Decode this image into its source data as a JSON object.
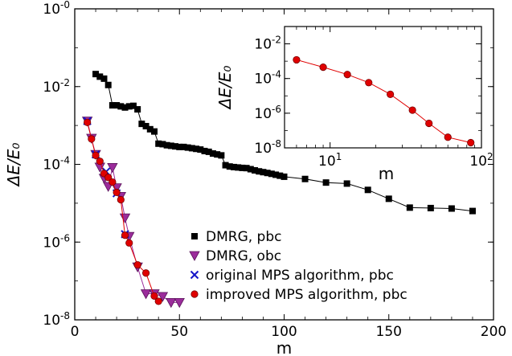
{
  "chart_data": [
    {
      "type": "scatter",
      "xlabel": "m",
      "ylabel": "ΔE/E₀",
      "xscale": "linear",
      "yscale": "log",
      "xlim": [
        0,
        200
      ],
      "ylim": [
        1e-08,
        1
      ],
      "xticks": [
        {
          "value": 0,
          "label": "0"
        },
        {
          "value": 50,
          "label": "50"
        },
        {
          "value": 100,
          "label": "100"
        },
        {
          "value": 150,
          "label": "150"
        },
        {
          "value": 200,
          "label": "200"
        }
      ],
      "yticks": [
        {
          "value": 1e-08,
          "base": "10",
          "exp": "-8"
        },
        {
          "value": 1e-06,
          "base": "10",
          "exp": "-6"
        },
        {
          "value": 0.0001,
          "base": "10",
          "exp": "-4"
        },
        {
          "value": 0.01,
          "base": "10",
          "exp": "-2"
        },
        {
          "value": 1,
          "base": "10",
          "exp": "-0"
        }
      ],
      "legend_position": "bottom-right",
      "series": [
        {
          "name": "DMRG, pbc",
          "marker": "square",
          "color": "#000000",
          "x": [
            10,
            12,
            14,
            16,
            18,
            20,
            22,
            24,
            26,
            28,
            30,
            32,
            34,
            36,
            38,
            40,
            42,
            44,
            46,
            48,
            50,
            52,
            54,
            56,
            58,
            60,
            62,
            64,
            66,
            68,
            70,
            72,
            74,
            76,
            78,
            80,
            82,
            84,
            86,
            88,
            90,
            92,
            94,
            96,
            98,
            100,
            110,
            120,
            130,
            140,
            150,
            160,
            170,
            180,
            190
          ],
          "y": [
            0.021,
            0.018,
            0.016,
            0.011,
            0.0033,
            0.0033,
            0.0031,
            0.0029,
            0.0031,
            0.0032,
            0.0026,
            0.0011,
            0.00096,
            0.0008,
            0.0007,
            0.00034,
            0.00033,
            0.00031,
            0.0003,
            0.00029,
            0.00028,
            0.00028,
            0.00027,
            0.00026,
            0.00025,
            0.00024,
            0.00022,
            0.00021,
            0.00019,
            0.00018,
            0.00017,
            9.5e-05,
            8.8e-05,
            8.5e-05,
            8.3e-05,
            8.1e-05,
            8e-05,
            7.5e-05,
            7e-05,
            6.6e-05,
            6.3e-05,
            6e-05,
            5.7e-05,
            5.4e-05,
            5.1e-05,
            4.8e-05,
            4.2e-05,
            3.4e-05,
            3.2e-05,
            2.2e-05,
            1.3e-05,
            7.7e-06,
            7.5e-06,
            7.3e-06,
            6.3e-06
          ]
        },
        {
          "name": "DMRG, obc",
          "marker": "triangle-down",
          "color": "#9b2c9b",
          "x": [
            6,
            8,
            10,
            12,
            14,
            16,
            18,
            20,
            22,
            24,
            26,
            30,
            34,
            38,
            42,
            46,
            50
          ],
          "y": [
            0.0013,
            0.00047,
            0.00018,
            8.5e-05,
            4.4e-05,
            2.7e-05,
            8.3e-05,
            2.5e-05,
            1.5e-05,
            4.2e-06,
            1.4e-06,
            2.3e-07,
            4.7e-08,
            4.7e-08,
            4e-08,
            2.8e-08,
            2.8e-08
          ]
        },
        {
          "name": "original MPS algorithm, pbc",
          "marker": "cross",
          "color": "#1414c8",
          "x": [
            6,
            10,
            15,
            20,
            24
          ],
          "y": [
            0.0013,
            0.00018,
            6.5e-05,
            1.8e-05,
            1.6e-06
          ]
        },
        {
          "name": "improved MPS algorithm, pbc",
          "marker": "circle",
          "color": "#e00000",
          "x": [
            6,
            8,
            10,
            12,
            14,
            16,
            18,
            20,
            22,
            24,
            26,
            30,
            34,
            38,
            40
          ],
          "y": [
            0.0012,
            0.00045,
            0.00017,
            0.00012,
            5.8e-05,
            4.6e-05,
            3.5e-05,
            1.9e-05,
            1.23e-05,
            1.5e-06,
            9.5e-07,
            2.6e-07,
            1.6e-07,
            4.1e-08,
            3e-08
          ]
        }
      ]
    },
    {
      "type": "line",
      "xlabel": "m",
      "ylabel": "ΔE/E₀",
      "xscale": "log",
      "yscale": "log",
      "xlim": [
        5,
        100
      ],
      "ylim": [
        1e-08,
        0.1
      ],
      "xticks": [
        {
          "value": 10,
          "base": "10",
          "exp": "1"
        },
        {
          "value": 100,
          "base": "10",
          "exp": "2"
        }
      ],
      "yticks": [
        {
          "value": 1e-08,
          "base": "10",
          "exp": "-8"
        },
        {
          "value": 1e-06,
          "base": "10",
          "exp": "-6"
        },
        {
          "value": 0.0001,
          "base": "10",
          "exp": "-4"
        },
        {
          "value": 0.01,
          "base": "10",
          "exp": "-2"
        }
      ],
      "series": [
        {
          "marker": "circle",
          "color": "#e00000",
          "x": [
            6,
            9,
            13,
            18,
            25,
            35,
            45,
            60,
            85
          ],
          "y": [
            0.0012,
            0.00045,
            0.00017,
            5.8e-05,
            1.23e-05,
            1.5e-06,
            2.6e-07,
            4.1e-08,
            2e-08
          ]
        }
      ]
    }
  ]
}
